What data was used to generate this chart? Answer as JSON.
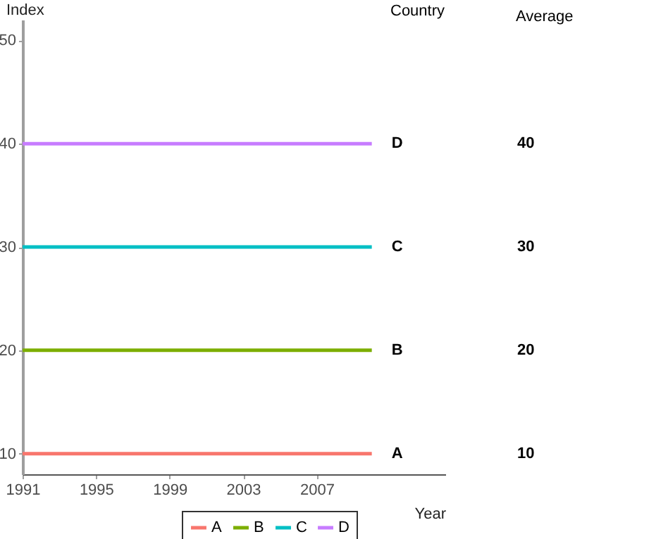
{
  "chart_data": {
    "type": "line",
    "xlabel": "Year",
    "ylabel": "Index",
    "x": [
      1991,
      2010
    ],
    "series": [
      {
        "name": "A",
        "color": "#f8766d",
        "values": [
          10,
          10
        ]
      },
      {
        "name": "B",
        "color": "#7cae00",
        "values": [
          20,
          20
        ]
      },
      {
        "name": "C",
        "color": "#00bfc4",
        "values": [
          30,
          30
        ]
      },
      {
        "name": "D",
        "color": "#c77cff",
        "values": [
          40,
          40
        ]
      }
    ],
    "xlim": [
      1991,
      2014
    ],
    "xticks": [
      1991,
      1995,
      1999,
      2003,
      2007
    ],
    "ylim": [
      8,
      52
    ],
    "yticks": [
      10,
      20,
      30,
      40,
      50
    ],
    "grid": false,
    "legend": "bottom",
    "annotations": [
      "Country",
      "Average",
      "10",
      "20",
      "30",
      "40"
    ]
  }
}
